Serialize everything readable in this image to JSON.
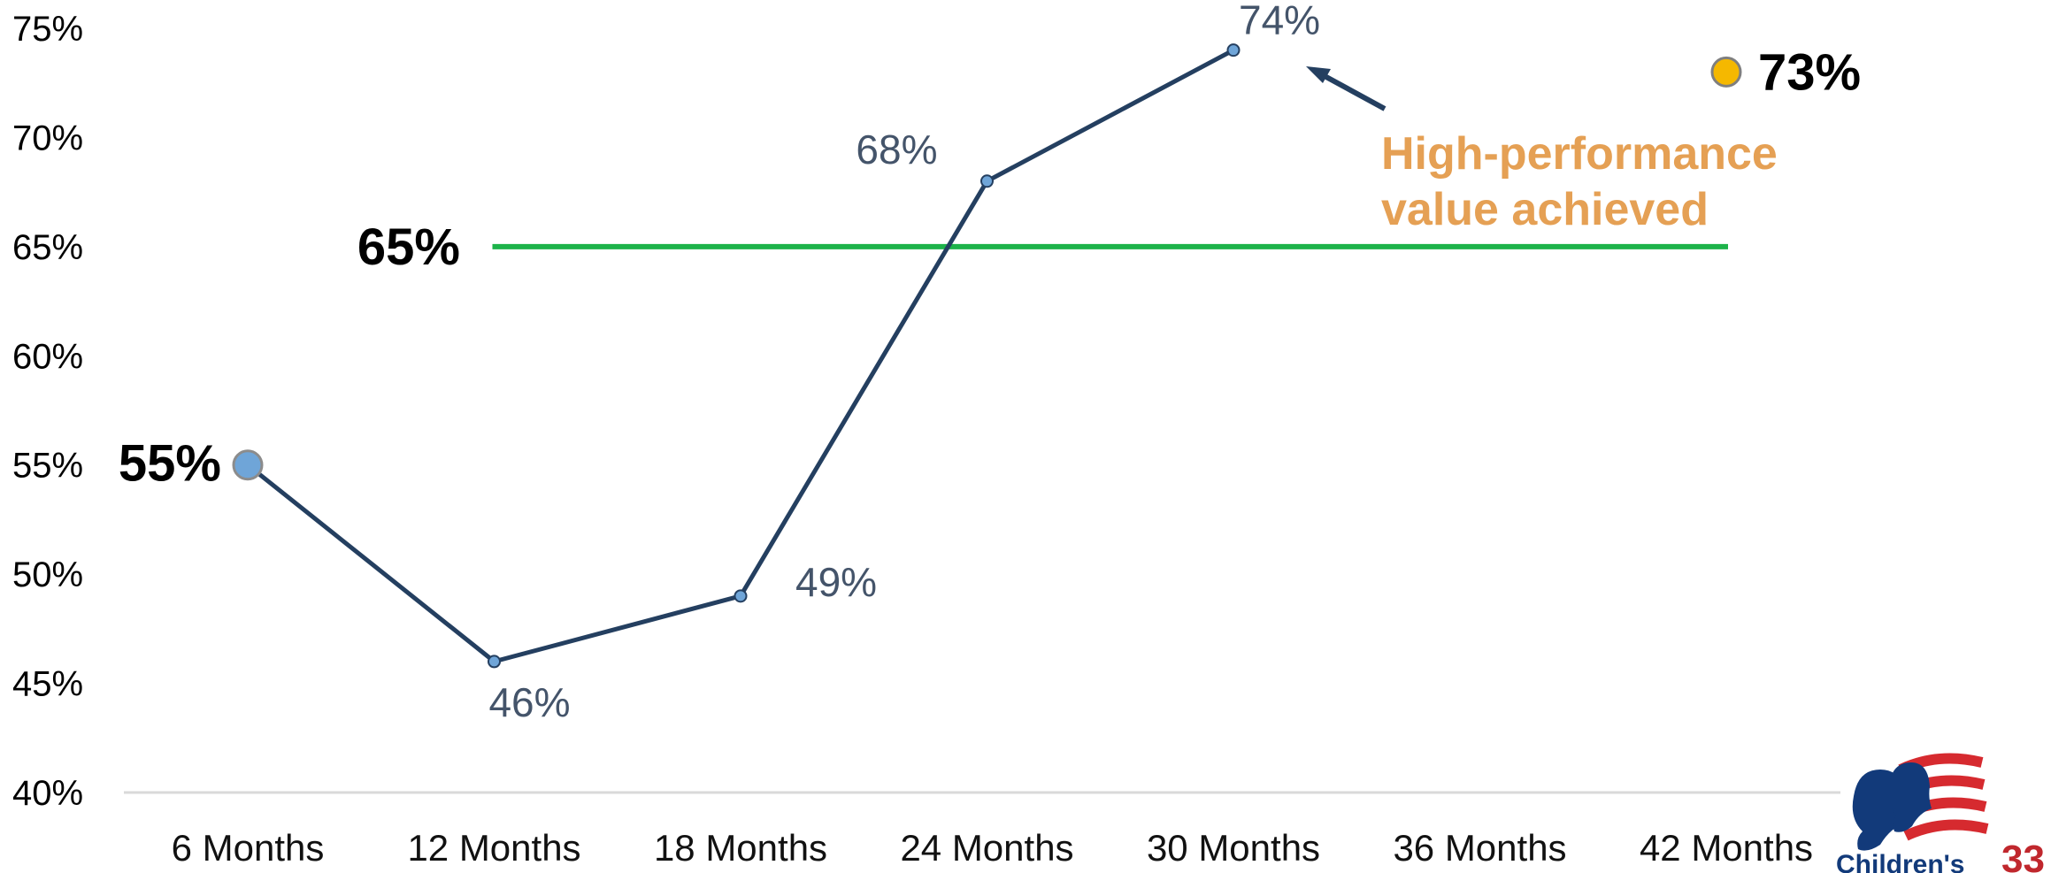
{
  "chart_data": {
    "type": "line",
    "categories": [
      "6 Months",
      "12 Months",
      "18 Months",
      "24 Months",
      "30 Months",
      "36 Months",
      "42 Months"
    ],
    "series": [
      {
        "values": [
          55,
          46,
          49,
          68,
          74,
          null,
          null
        ]
      }
    ],
    "data_labels": [
      "55%",
      "46%",
      "49%",
      "68%",
      "74%",
      "",
      ""
    ],
    "target": {
      "value": 65,
      "label": "65%",
      "color": "#1db34a"
    },
    "highlight_point": {
      "category": "42 Months",
      "value": 73,
      "label": "73%",
      "color": "#f5b800"
    },
    "annotation": {
      "line1": "High-performance",
      "line2": "value achieved",
      "color": "#e5a054"
    },
    "y_ticks": [
      "40%",
      "45%",
      "50%",
      "55%",
      "60%",
      "65%",
      "70%",
      "75%"
    ],
    "ylim": [
      40,
      75
    ],
    "grid": false,
    "line_color": "#243f60",
    "marker_color": "#6fa5d8"
  },
  "footer": {
    "page_number": "33",
    "logo_text": "Children's"
  }
}
